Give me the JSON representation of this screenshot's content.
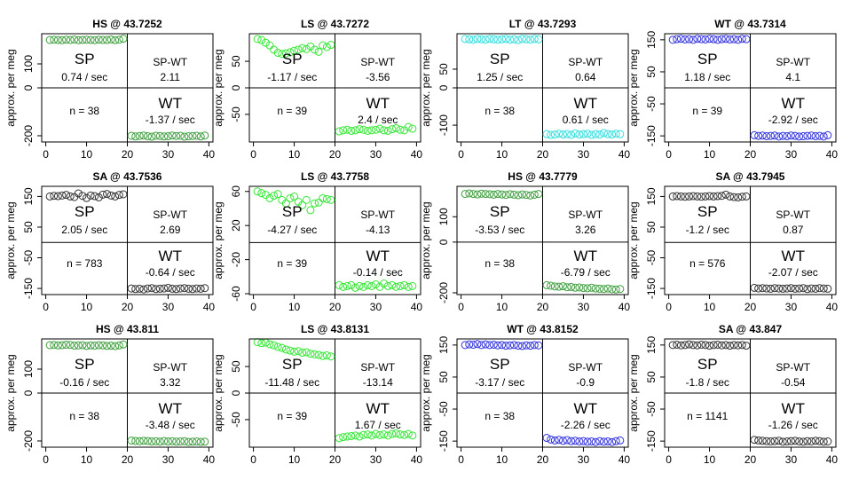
{
  "chart_data": [
    {
      "type": "scatter",
      "title": "HS @ 43.7252",
      "y_label": "approx. per meg",
      "color": "#3f9f3f",
      "x": [
        1,
        2,
        3,
        4,
        5,
        6,
        7,
        8,
        9,
        10,
        11,
        12,
        13,
        14,
        15,
        16,
        17,
        18,
        19,
        21,
        22,
        23,
        24,
        25,
        26,
        27,
        28,
        29,
        30,
        31,
        32,
        33,
        34,
        35,
        36,
        37,
        38,
        39
      ],
      "values": [
        200,
        201,
        200,
        199,
        201,
        200,
        202,
        199,
        200,
        201,
        200,
        199,
        201,
        200,
        200,
        202,
        199,
        201,
        205,
        -200,
        -203,
        -201,
        -199,
        -202,
        -204,
        -200,
        -201,
        -203,
        -202,
        -199,
        -201,
        -200,
        -204,
        -202,
        -201,
        -200,
        -203,
        -199
      ],
      "xlim": [
        -1,
        41
      ],
      "ylim": [
        -226,
        226
      ],
      "xticks": [
        0,
        10,
        20,
        30,
        40
      ],
      "yticks": [
        -200,
        0,
        100
      ],
      "hline": 0,
      "vline": 20,
      "annotations": [
        "SP",
        "0.74 / sec",
        "SP-WT",
        "2.11",
        "n = 38",
        "WT",
        "-1.37 / sec"
      ]
    },
    {
      "type": "scatter",
      "title": "LS @ 43.7272",
      "y_label": "approx. per meg",
      "color": "#33e633",
      "x": [
        1,
        2,
        3,
        4,
        5,
        6,
        7,
        8,
        9,
        10,
        11,
        12,
        13,
        14,
        15,
        16,
        17,
        18,
        19,
        21,
        22,
        23,
        24,
        25,
        26,
        27,
        28,
        29,
        30,
        31,
        32,
        33,
        34,
        35,
        36,
        37,
        38,
        39
      ],
      "values": [
        92,
        90,
        85,
        80,
        72,
        66,
        64,
        65,
        67,
        70,
        72,
        75,
        73,
        78,
        72,
        68,
        80,
        77,
        81,
        -82,
        -80,
        -79,
        -81,
        -80,
        -78,
        -79,
        -81,
        -80,
        -79,
        -77,
        -80,
        -81,
        -78,
        -76,
        -79,
        -80,
        -74,
        -77
      ],
      "xlim": [
        -1,
        41
      ],
      "ylim": [
        -102,
        102
      ],
      "xticks": [
        0,
        10,
        20,
        30,
        40
      ],
      "yticks": [
        -50,
        0,
        50
      ],
      "hline": 0,
      "vline": 20,
      "annotations": [
        "SP",
        "-1.17 / sec",
        "SP-WT",
        "-3.56",
        "n = 39",
        "WT",
        "2.4 / sec"
      ]
    },
    {
      "type": "scatter",
      "title": "LT @ 43.7293",
      "y_label": "approx. per meg",
      "color": "#33dede",
      "x": [
        1,
        2,
        3,
        4,
        5,
        6,
        7,
        8,
        9,
        10,
        11,
        12,
        13,
        14,
        15,
        16,
        17,
        18,
        19,
        21,
        22,
        23,
        24,
        25,
        26,
        27,
        28,
        29,
        30,
        31,
        32,
        33,
        34,
        35,
        36,
        37,
        38,
        39
      ],
      "values": [
        131,
        130,
        129,
        131,
        130,
        129,
        131,
        130,
        129,
        130,
        131,
        129,
        130,
        128,
        131,
        130,
        129,
        131,
        130,
        -124,
        -126,
        -125,
        -123,
        -125,
        -124,
        -126,
        -122,
        -125,
        -124,
        -123,
        -126,
        -124,
        -125,
        -121,
        -124,
        -125,
        -123,
        -124
      ],
      "xlim": [
        -1,
        41
      ],
      "ylim": [
        -145,
        145
      ],
      "xticks": [
        0,
        10,
        20,
        30,
        40
      ],
      "yticks": [
        -100,
        0,
        50
      ],
      "hline": 0,
      "vline": 20,
      "annotations": [
        "SP",
        "1.25 / sec",
        "SP-WT",
        "0.64",
        "n = 38",
        "WT",
        "0.61 / sec"
      ]
    },
    {
      "type": "scatter",
      "title": "WT @ 43.7314",
      "y_label": "approx. per meg",
      "color": "#3333dd",
      "x": [
        1,
        2,
        3,
        4,
        5,
        6,
        7,
        8,
        9,
        10,
        11,
        12,
        13,
        14,
        15,
        16,
        17,
        18,
        19,
        21,
        22,
        23,
        24,
        25,
        26,
        27,
        28,
        29,
        30,
        31,
        32,
        33,
        34,
        35,
        36,
        37,
        38,
        39
      ],
      "values": [
        150,
        152,
        153,
        151,
        152,
        150,
        153,
        152,
        151,
        153,
        152,
        150,
        152,
        153,
        151,
        152,
        150,
        153,
        152,
        -148,
        -150,
        -149,
        -151,
        -150,
        -149,
        -152,
        -150,
        -151,
        -149,
        -150,
        -152,
        -151,
        -150,
        -149,
        -151,
        -150,
        -152,
        -148
      ],
      "xlim": [
        -1,
        41
      ],
      "ylim": [
        -169,
        169
      ],
      "xticks": [
        0,
        10,
        20,
        30,
        40
      ],
      "yticks": [
        -150,
        -50,
        50,
        150
      ],
      "hline": 0,
      "vline": 20,
      "annotations": [
        "SP",
        "1.18 / sec",
        "SP-WT",
        "4.1",
        "n = 39",
        "WT",
        "-2.92 / sec"
      ]
    },
    {
      "type": "scatter",
      "title": "SA @ 43.7536",
      "y_label": "approx. per meg",
      "color": "#333333",
      "x": [
        1,
        2,
        3,
        4,
        5,
        6,
        7,
        8,
        9,
        10,
        11,
        12,
        13,
        14,
        15,
        16,
        17,
        18,
        19,
        21,
        22,
        23,
        24,
        25,
        26,
        27,
        28,
        29,
        30,
        31,
        32,
        33,
        34,
        35,
        36,
        37,
        38,
        39
      ],
      "values": [
        150,
        152,
        151,
        153,
        155,
        150,
        148,
        160,
        152,
        145,
        153,
        151,
        147,
        156,
        158,
        153,
        150,
        155,
        157,
        -150,
        -152,
        -151,
        -153,
        -150,
        -149,
        -152,
        -151,
        -150,
        -148,
        -151,
        -152,
        -150,
        -149,
        -151,
        -152,
        -150,
        -151,
        -149
      ],
      "xlim": [
        -1,
        41
      ],
      "ylim": [
        -170,
        183
      ],
      "xticks": [
        0,
        10,
        20,
        30,
        40
      ],
      "yticks": [
        -150,
        -50,
        50,
        150
      ],
      "hline": 0,
      "vline": 20,
      "annotations": [
        "SP",
        "2.05 / sec",
        "SP-WT",
        "2.69",
        "n = 783",
        "WT",
        "-0.64 / sec"
      ]
    },
    {
      "type": "scatter",
      "title": "LS @ 43.7758",
      "y_label": "approx. per meg",
      "color": "#33e633",
      "x": [
        1,
        2,
        3,
        4,
        5,
        6,
        7,
        8,
        9,
        10,
        11,
        12,
        13,
        14,
        15,
        16,
        17,
        18,
        19,
        21,
        22,
        23,
        24,
        25,
        26,
        27,
        28,
        29,
        30,
        31,
        32,
        33,
        34,
        35,
        36,
        37,
        38,
        39
      ],
      "values": [
        60,
        58,
        56,
        52,
        55,
        57,
        50,
        46,
        52,
        54,
        48,
        44,
        50,
        38,
        46,
        47,
        52,
        51,
        50,
        -50,
        -52,
        -51,
        -50,
        -53,
        -51,
        -52,
        -50,
        -51,
        -49,
        -52,
        -48,
        -51,
        -50,
        -52,
        -51,
        -50,
        -52,
        -51
      ],
      "xlim": [
        -1,
        41
      ],
      "ylim": [
        -61,
        66
      ],
      "xticks": [
        0,
        10,
        20,
        30,
        40
      ],
      "yticks": [
        -60,
        -20,
        20,
        60
      ],
      "hline": 0,
      "vline": 20,
      "annotations": [
        "SP",
        "-4.27 / sec",
        "SP-WT",
        "-4.13",
        "n = 39",
        "WT",
        "-0.14 / sec"
      ]
    },
    {
      "type": "scatter",
      "title": "HS @ 43.7779",
      "y_label": "approx. per meg",
      "color": "#3f9f3f",
      "x": [
        1,
        2,
        3,
        4,
        5,
        6,
        7,
        8,
        9,
        10,
        11,
        12,
        13,
        14,
        15,
        16,
        17,
        18,
        19,
        21,
        22,
        23,
        24,
        25,
        26,
        27,
        28,
        29,
        30,
        31,
        32,
        33,
        34,
        35,
        36,
        37,
        38,
        39
      ],
      "values": [
        190,
        192,
        190,
        188,
        191,
        190,
        189,
        187,
        190,
        188,
        186,
        189,
        187,
        185,
        188,
        186,
        184,
        187,
        190,
        -170,
        -172,
        -175,
        -176,
        -174,
        -178,
        -177,
        -180,
        -179,
        -181,
        -182,
        -180,
        -183,
        -184,
        -185,
        -183,
        -186,
        -187,
        -185
      ],
      "xlim": [
        -1,
        41
      ],
      "ylim": [
        -207,
        220
      ],
      "xticks": [
        0,
        10,
        20,
        30,
        40
      ],
      "yticks": [
        -200,
        0,
        100
      ],
      "hline": 0,
      "vline": 20,
      "annotations": [
        "SP",
        "-3.53 / sec",
        "SP-WT",
        "3.26",
        "n = 38",
        "WT",
        "-6.79 / sec"
      ]
    },
    {
      "type": "scatter",
      "title": "SA @ 43.7945",
      "y_label": "approx. per meg",
      "color": "#333333",
      "x": [
        1,
        2,
        3,
        4,
        5,
        6,
        7,
        8,
        9,
        10,
        11,
        12,
        13,
        14,
        15,
        16,
        17,
        18,
        19,
        21,
        22,
        23,
        24,
        25,
        26,
        27,
        28,
        29,
        30,
        31,
        32,
        33,
        34,
        35,
        36,
        37,
        38,
        39
      ],
      "values": [
        150,
        151,
        150,
        149,
        150,
        151,
        150,
        149,
        150,
        151,
        150,
        151,
        152,
        156,
        150,
        148,
        147,
        149,
        150,
        -148,
        -150,
        -149,
        -150,
        -151,
        -149,
        -150,
        -151,
        -150,
        -149,
        -151,
        -150,
        -149,
        -152,
        -150,
        -151,
        -149,
        -150,
        -151
      ],
      "xlim": [
        -1,
        41
      ],
      "ylim": [
        -170,
        183
      ],
      "xticks": [
        0,
        10,
        20,
        30,
        40
      ],
      "yticks": [
        -150,
        -50,
        50,
        150
      ],
      "hline": 0,
      "vline": 20,
      "annotations": [
        "SP",
        "-1.2 / sec",
        "SP-WT",
        "0.87",
        "n = 576",
        "WT",
        "-2.07 / sec"
      ]
    },
    {
      "type": "scatter",
      "title": "HS @ 43.811",
      "y_label": "approx. per meg",
      "color": "#3f9f3f",
      "x": [
        1,
        2,
        3,
        4,
        5,
        6,
        7,
        8,
        9,
        10,
        11,
        12,
        13,
        14,
        15,
        16,
        17,
        18,
        19,
        21,
        22,
        23,
        24,
        25,
        26,
        27,
        28,
        29,
        30,
        31,
        32,
        33,
        34,
        35,
        36,
        37,
        38,
        39
      ],
      "values": [
        200,
        201,
        199,
        200,
        202,
        201,
        198,
        199,
        200,
        197,
        199,
        198,
        200,
        199,
        197,
        198,
        196,
        199,
        203,
        -198,
        -200,
        -201,
        -199,
        -200,
        -202,
        -201,
        -203,
        -200,
        -202,
        -201,
        -203,
        -202,
        -201,
        -204,
        -203,
        -202,
        -204,
        -203
      ],
      "xlim": [
        -1,
        41
      ],
      "ylim": [
        -226,
        226
      ],
      "xticks": [
        0,
        10,
        20,
        30,
        40
      ],
      "yticks": [
        -200,
        0,
        100
      ],
      "hline": 0,
      "vline": 20,
      "annotations": [
        "SP",
        "-0.16 / sec",
        "SP-WT",
        "3.32",
        "n = 38",
        "WT",
        "-3.48 / sec"
      ]
    },
    {
      "type": "scatter",
      "title": "LS @ 43.8131",
      "y_label": "approx. per meg",
      "color": "#33e633",
      "x": [
        1,
        2,
        3,
        4,
        5,
        6,
        7,
        8,
        9,
        10,
        11,
        12,
        13,
        14,
        15,
        16,
        17,
        18,
        19,
        21,
        22,
        23,
        24,
        25,
        26,
        27,
        28,
        29,
        30,
        31,
        32,
        33,
        34,
        35,
        36,
        37,
        38,
        39
      ],
      "values": [
        96,
        94,
        95,
        92,
        90,
        87,
        85,
        82,
        80,
        78,
        79,
        76,
        77,
        74,
        73,
        72,
        70,
        71,
        69,
        -85,
        -83,
        -82,
        -81,
        -80,
        -82,
        -79,
        -78,
        -80,
        -77,
        -79,
        -78,
        -80,
        -77,
        -76,
        -78,
        -79,
        -77,
        -80
      ],
      "xlim": [
        -1,
        41
      ],
      "ylim": [
        -102,
        102
      ],
      "xticks": [
        0,
        10,
        20,
        30,
        40
      ],
      "yticks": [
        -50,
        0,
        50
      ],
      "hline": 0,
      "vline": 20,
      "annotations": [
        "SP",
        "-11.48 / sec",
        "SP-WT",
        "-13.14",
        "n = 39",
        "WT",
        "1.67 / sec"
      ]
    },
    {
      "type": "scatter",
      "title": "WT @ 43.8152",
      "y_label": "approx. per meg",
      "color": "#3333dd",
      "x": [
        1,
        2,
        3,
        4,
        5,
        6,
        7,
        8,
        9,
        10,
        11,
        12,
        13,
        14,
        15,
        16,
        17,
        18,
        19,
        21,
        22,
        23,
        24,
        25,
        26,
        27,
        28,
        29,
        30,
        31,
        32,
        33,
        34,
        35,
        36,
        37,
        38,
        39
      ],
      "values": [
        150,
        152,
        151,
        153,
        150,
        152,
        150,
        151,
        149,
        150,
        148,
        149,
        150,
        148,
        147,
        149,
        148,
        150,
        149,
        -140,
        -145,
        -148,
        -146,
        -149,
        -147,
        -150,
        -149,
        -151,
        -150,
        -152,
        -151,
        -153,
        -150,
        -152,
        -151,
        -153,
        -150,
        -148
      ],
      "xlim": [
        -1,
        41
      ],
      "ylim": [
        -169,
        169
      ],
      "xticks": [
        0,
        10,
        20,
        30,
        40
      ],
      "yticks": [
        -150,
        -50,
        50,
        150
      ],
      "hline": 0,
      "vline": 20,
      "annotations": [
        "SP",
        "-3.17 / sec",
        "SP-WT",
        "-0.9",
        "n = 38",
        "WT",
        "-2.26 / sec"
      ]
    },
    {
      "type": "scatter",
      "title": "SA @ 43.847",
      "y_label": "approx. per meg",
      "color": "#333333",
      "x": [
        1,
        2,
        3,
        4,
        5,
        6,
        7,
        8,
        9,
        10,
        11,
        12,
        13,
        14,
        15,
        16,
        17,
        18,
        19,
        21,
        22,
        23,
        24,
        25,
        26,
        27,
        28,
        29,
        30,
        31,
        32,
        33,
        34,
        35,
        36,
        37,
        38,
        39
      ],
      "values": [
        150,
        151,
        149,
        150,
        152,
        150,
        149,
        151,
        150,
        148,
        150,
        151,
        149,
        150,
        148,
        150,
        149,
        150,
        148,
        -146,
        -148,
        -149,
        -150,
        -151,
        -150,
        -149,
        -152,
        -151,
        -150,
        -149,
        -151,
        -152,
        -150,
        -151,
        -149,
        -150,
        -152,
        -151
      ],
      "xlim": [
        -1,
        41
      ],
      "ylim": [
        -169,
        169
      ],
      "xticks": [
        0,
        10,
        20,
        30,
        40
      ],
      "yticks": [
        -150,
        -50,
        50,
        150
      ],
      "hline": 0,
      "vline": 20,
      "annotations": [
        "SP",
        "-1.8 / sec",
        "SP-WT",
        "-0.54",
        "n = 1141",
        "WT",
        "-1.26 / sec"
      ]
    }
  ]
}
